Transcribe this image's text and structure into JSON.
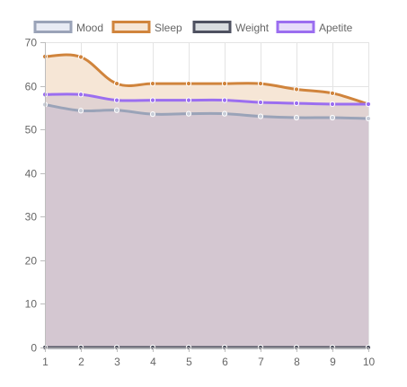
{
  "chart_data": {
    "type": "area",
    "x": [
      "1",
      "2",
      "3",
      "4",
      "5",
      "6",
      "7",
      "8",
      "9",
      "10"
    ],
    "ylim": [
      0,
      70
    ],
    "yticks": [
      0,
      10,
      20,
      30,
      40,
      50,
      60,
      70
    ],
    "grid": true,
    "legend_position": "top",
    "series": [
      {
        "name": "Mood",
        "values": [
          55.7,
          54.3,
          54.4,
          53.5,
          53.6,
          53.6,
          53.0,
          52.7,
          52.7,
          52.5
        ],
        "line_color": "#9aa3b8",
        "fill_color": "#e8ebf4",
        "point_color": "#c8cdd8"
      },
      {
        "name": "Sleep",
        "values": [
          66.7,
          66.6,
          60.5,
          60.5,
          60.5,
          60.5,
          60.5,
          59.2,
          58.3,
          55.8
        ],
        "line_color": "#d0843c",
        "fill_color": "#f6e6d6",
        "point_color": "#d0843c"
      },
      {
        "name": "Weight",
        "values": [
          0,
          0,
          0,
          0,
          0,
          0,
          0,
          0,
          0,
          0
        ],
        "line_color": "#4e5160",
        "fill_color": "#d8dcdf",
        "point_color": "#4e5160"
      },
      {
        "name": "Apetite",
        "values": [
          58.0,
          58.0,
          56.7,
          56.7,
          56.7,
          56.7,
          56.2,
          56.0,
          55.8,
          55.8
        ],
        "line_color": "#9b6ef0",
        "fill_color": "#e6dcfa",
        "point_color": "#9b6ef0"
      }
    ],
    "colors": {
      "stacked_fill": "#cfc3d0",
      "grid": "#e4e4e4",
      "axis": "#bdbdbd",
      "tick_text": "#666666"
    }
  }
}
